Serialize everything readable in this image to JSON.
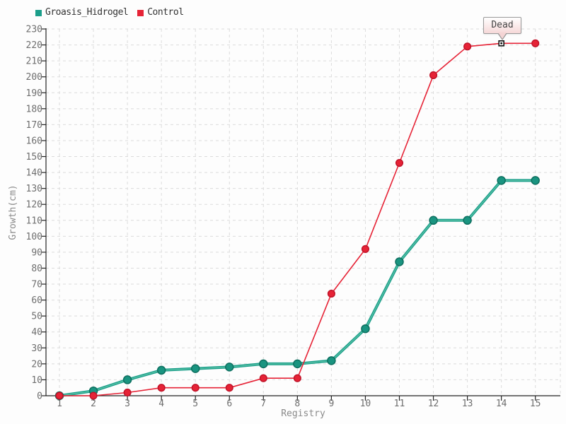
{
  "chart_data": {
    "type": "line",
    "title": "",
    "xlabel": "Registry",
    "ylabel": "Growth(cm)",
    "x": [
      1,
      2,
      3,
      4,
      5,
      6,
      7,
      8,
      9,
      10,
      11,
      12,
      13,
      14,
      15
    ],
    "xlim": [
      1,
      15
    ],
    "ylim": [
      0,
      230
    ],
    "ytick_step": 10,
    "grid": "dashed",
    "legend_position": "top-left",
    "series": [
      {
        "name": "Groasis_Hidrogel",
        "color": "#1b9e8a",
        "marker_fill": "#1a9480",
        "marker_stroke": "#0d6f5f",
        "highlight_color": "#5ec4a7",
        "line_width": 4,
        "marker_radius": 5.5,
        "values": [
          0,
          3,
          10,
          16,
          17,
          18,
          20,
          20,
          22,
          42,
          84,
          110,
          110,
          135,
          135
        ]
      },
      {
        "name": "Control",
        "color": "#e62336",
        "marker_fill": "#e62336",
        "marker_stroke": "#c11329",
        "line_width": 1.6,
        "marker_radius": 4.8,
        "values": [
          0,
          0,
          2,
          5,
          5,
          5,
          11,
          11,
          64,
          92,
          146,
          201,
          219,
          221,
          221
        ]
      }
    ],
    "annotation": {
      "text": "Dead",
      "series": "Control",
      "x": 14,
      "y": 221
    },
    "colors": {
      "grid": "#dcdcdc",
      "axis": "#222222",
      "tick_label": "#6e6e6e",
      "axis_title": "#8a8a8a",
      "legend_text": "#333333",
      "tooltip_border": "#999999",
      "dead_marker_fill": "#ffffff",
      "dead_marker_stroke": "#111111",
      "background": "#fdfdfd"
    }
  }
}
